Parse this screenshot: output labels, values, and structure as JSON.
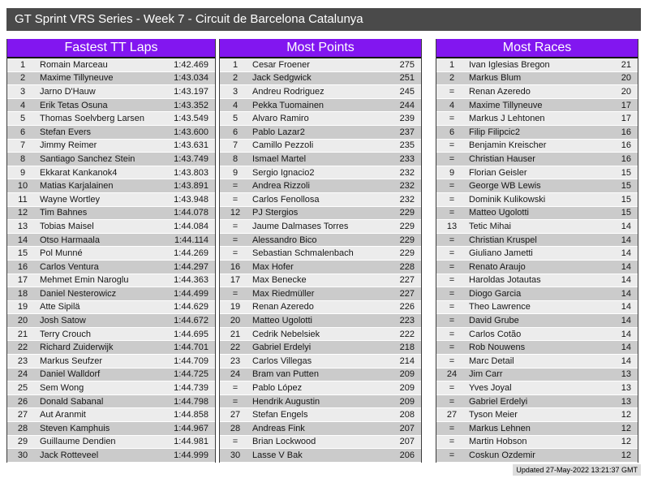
{
  "header": {
    "title": "GT Sprint VRS Series - Week 7 - Circuit de Barcelona Catalunya"
  },
  "colors": {
    "accent": "#8216f0",
    "titlebar": "#4a4a4a",
    "row_odd": "#ececec",
    "row_even": "#cbcbcb"
  },
  "tables": [
    {
      "title": "Fastest TT Laps",
      "rows": [
        [
          "1",
          "Romain Marceau",
          "1:42.469"
        ],
        [
          "2",
          "Maxime Tillyneuve",
          "1:43.034"
        ],
        [
          "3",
          "Jarno D'Hauw",
          "1:43.197"
        ],
        [
          "4",
          "Erik Tetas Osuna",
          "1:43.352"
        ],
        [
          "5",
          "Thomas Soelvberg Larsen",
          "1:43.549"
        ],
        [
          "6",
          "Stefan Evers",
          "1:43.600"
        ],
        [
          "7",
          "Jimmy Reimer",
          "1:43.631"
        ],
        [
          "8",
          "Santiago Sanchez Stein",
          "1:43.749"
        ],
        [
          "9",
          "Ekkarat Kankanok4",
          "1:43.803"
        ],
        [
          "10",
          "Matias Karjalainen",
          "1:43.891"
        ],
        [
          "11",
          "Wayne Wortley",
          "1:43.948"
        ],
        [
          "12",
          "Tim Bahnes",
          "1:44.078"
        ],
        [
          "13",
          "Tobias Maisel",
          "1:44.084"
        ],
        [
          "14",
          "Otso Harmaala",
          "1:44.114"
        ],
        [
          "15",
          "Pol Munné",
          "1:44.269"
        ],
        [
          "16",
          "Carlos Ventura",
          "1:44.297"
        ],
        [
          "17",
          "Mehmet Emin Naroglu",
          "1:44.363"
        ],
        [
          "18",
          "Daniel Nesterowicz",
          "1:44.499"
        ],
        [
          "19",
          "Atte Sipilä",
          "1:44.629"
        ],
        [
          "20",
          "Josh Satow",
          "1:44.672"
        ],
        [
          "21",
          "Terry Crouch",
          "1:44.695"
        ],
        [
          "22",
          "Richard Zuiderwijk",
          "1:44.701"
        ],
        [
          "23",
          "Markus Seufzer",
          "1:44.709"
        ],
        [
          "24",
          "Daniel Walldorf",
          "1:44.725"
        ],
        [
          "25",
          "Sem Wong",
          "1:44.739"
        ],
        [
          "26",
          "Donald Sabanal",
          "1:44.798"
        ],
        [
          "27",
          "Aut Aranmit",
          "1:44.858"
        ],
        [
          "28",
          "Steven Kamphuis",
          "1:44.967"
        ],
        [
          "29",
          "Guillaume Dendien",
          "1:44.981"
        ],
        [
          "30",
          "Jack Rotteveel",
          "1:44.999"
        ]
      ]
    },
    {
      "title": "Most Points",
      "rows": [
        [
          "1",
          "Cesar Froener",
          "275"
        ],
        [
          "2",
          "Jack Sedgwick",
          "251"
        ],
        [
          "3",
          "Andreu Rodriguez",
          "245"
        ],
        [
          "4",
          "Pekka Tuomainen",
          "244"
        ],
        [
          "5",
          "Alvaro Ramiro",
          "239"
        ],
        [
          "6",
          "Pablo Lazar2",
          "237"
        ],
        [
          "7",
          "Camillo Pezzoli",
          "235"
        ],
        [
          "8",
          "Ismael Martel",
          "233"
        ],
        [
          "9",
          "Sergio Ignacio2",
          "232"
        ],
        [
          "=",
          "Andrea Rizzoli",
          "232"
        ],
        [
          "=",
          "Carlos Fenollosa",
          "232"
        ],
        [
          "12",
          "PJ Stergios",
          "229"
        ],
        [
          "=",
          "Jaume Dalmases Torres",
          "229"
        ],
        [
          "=",
          "Alessandro Bico",
          "229"
        ],
        [
          "=",
          "Sebastian Schmalenbach",
          "229"
        ],
        [
          "16",
          "Max Hofer",
          "228"
        ],
        [
          "17",
          "Max Benecke",
          "227"
        ],
        [
          "=",
          "Max Riedmüller",
          "227"
        ],
        [
          "19",
          "Renan Azeredo",
          "226"
        ],
        [
          "20",
          "Matteo Ugolotti",
          "223"
        ],
        [
          "21",
          "Cedrik Nebelsiek",
          "222"
        ],
        [
          "22",
          "Gabriel Erdelyi",
          "218"
        ],
        [
          "23",
          "Carlos Villegas",
          "214"
        ],
        [
          "24",
          "Bram van Putten",
          "209"
        ],
        [
          "=",
          "Pablo López",
          "209"
        ],
        [
          "=",
          "Hendrik Augustin",
          "209"
        ],
        [
          "27",
          "Stefan Engels",
          "208"
        ],
        [
          "28",
          "Andreas Fink",
          "207"
        ],
        [
          "=",
          "Brian Lockwood",
          "207"
        ],
        [
          "30",
          "Lasse V Bak",
          "206"
        ]
      ]
    },
    {
      "title": "Most Races",
      "rows": [
        [
          "1",
          "Ivan Iglesias Bregon",
          "21"
        ],
        [
          "2",
          "Markus Blum",
          "20"
        ],
        [
          "=",
          "Renan Azeredo",
          "20"
        ],
        [
          "4",
          "Maxime Tillyneuve",
          "17"
        ],
        [
          "=",
          "Markus J Lehtonen",
          "17"
        ],
        [
          "6",
          "Filip Filipcic2",
          "16"
        ],
        [
          "=",
          "Benjamin Kreischer",
          "16"
        ],
        [
          "=",
          "Christian Hauser",
          "16"
        ],
        [
          "9",
          "Florian Geisler",
          "15"
        ],
        [
          "=",
          "George WB Lewis",
          "15"
        ],
        [
          "=",
          "Dominik Kulikowski",
          "15"
        ],
        [
          "=",
          "Matteo Ugolotti",
          "15"
        ],
        [
          "13",
          "Tetic Mihai",
          "14"
        ],
        [
          "=",
          "Christian Kruspel",
          "14"
        ],
        [
          "=",
          "Giuliano Jametti",
          "14"
        ],
        [
          "=",
          "Renato Araujo",
          "14"
        ],
        [
          "=",
          "Haroldas Jotautas",
          "14"
        ],
        [
          "=",
          "Diogo Garcia",
          "14"
        ],
        [
          "=",
          "Theo Lawrence",
          "14"
        ],
        [
          "=",
          "David Grube",
          "14"
        ],
        [
          "=",
          "Carlos Cotão",
          "14"
        ],
        [
          "=",
          "Rob Nouwens",
          "14"
        ],
        [
          "=",
          "Marc Detail",
          "14"
        ],
        [
          "24",
          "Jim Carr",
          "13"
        ],
        [
          "=",
          "Yves Joyal",
          "13"
        ],
        [
          "=",
          "Gabriel Erdelyi",
          "13"
        ],
        [
          "27",
          "Tyson Meier",
          "12"
        ],
        [
          "=",
          "Markus Lehnen",
          "12"
        ],
        [
          "=",
          "Martin Hobson",
          "12"
        ],
        [
          "=",
          "Coskun Ozdemir",
          "12"
        ]
      ]
    }
  ],
  "footer": {
    "updated": "Updated 27-May-2022 13:21:37 GMT"
  }
}
